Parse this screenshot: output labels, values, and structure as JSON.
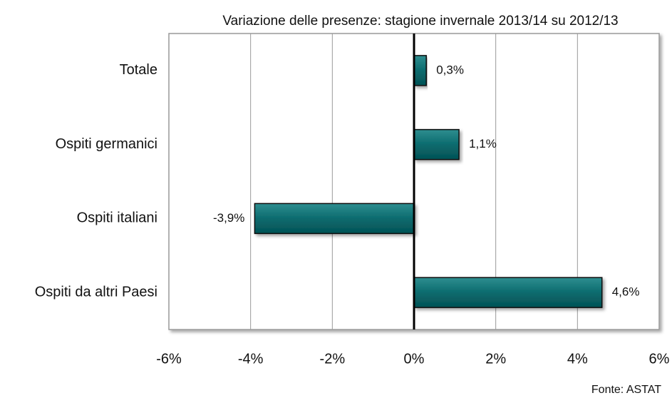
{
  "chart_data": {
    "type": "bar",
    "orientation": "horizontal",
    "title": "Variazione delle presenze: stagione invernale 2013/14 su 2012/13",
    "source": "Fonte: ASTAT",
    "categories": [
      "Totale",
      "Ospiti germanici",
      "Ospiti italiani",
      "Ospiti da altri Paesi"
    ],
    "values": [
      0.3,
      1.1,
      -3.9,
      4.6
    ],
    "value_labels": [
      "0,3%",
      "1,1%",
      "-3,9%",
      "4,6%"
    ],
    "color": "#0b6b6e",
    "xlim": [
      -6,
      6
    ],
    "xticks": [
      {
        "value": -6,
        "label": "-6%"
      },
      {
        "value": -4,
        "label": "-4%"
      },
      {
        "value": -2,
        "label": "-2%"
      },
      {
        "value": 0,
        "label": "0%"
      },
      {
        "value": 2,
        "label": "2%"
      },
      {
        "value": 4,
        "label": "4%"
      },
      {
        "value": 6,
        "label": "6%"
      }
    ],
    "grid": true
  }
}
